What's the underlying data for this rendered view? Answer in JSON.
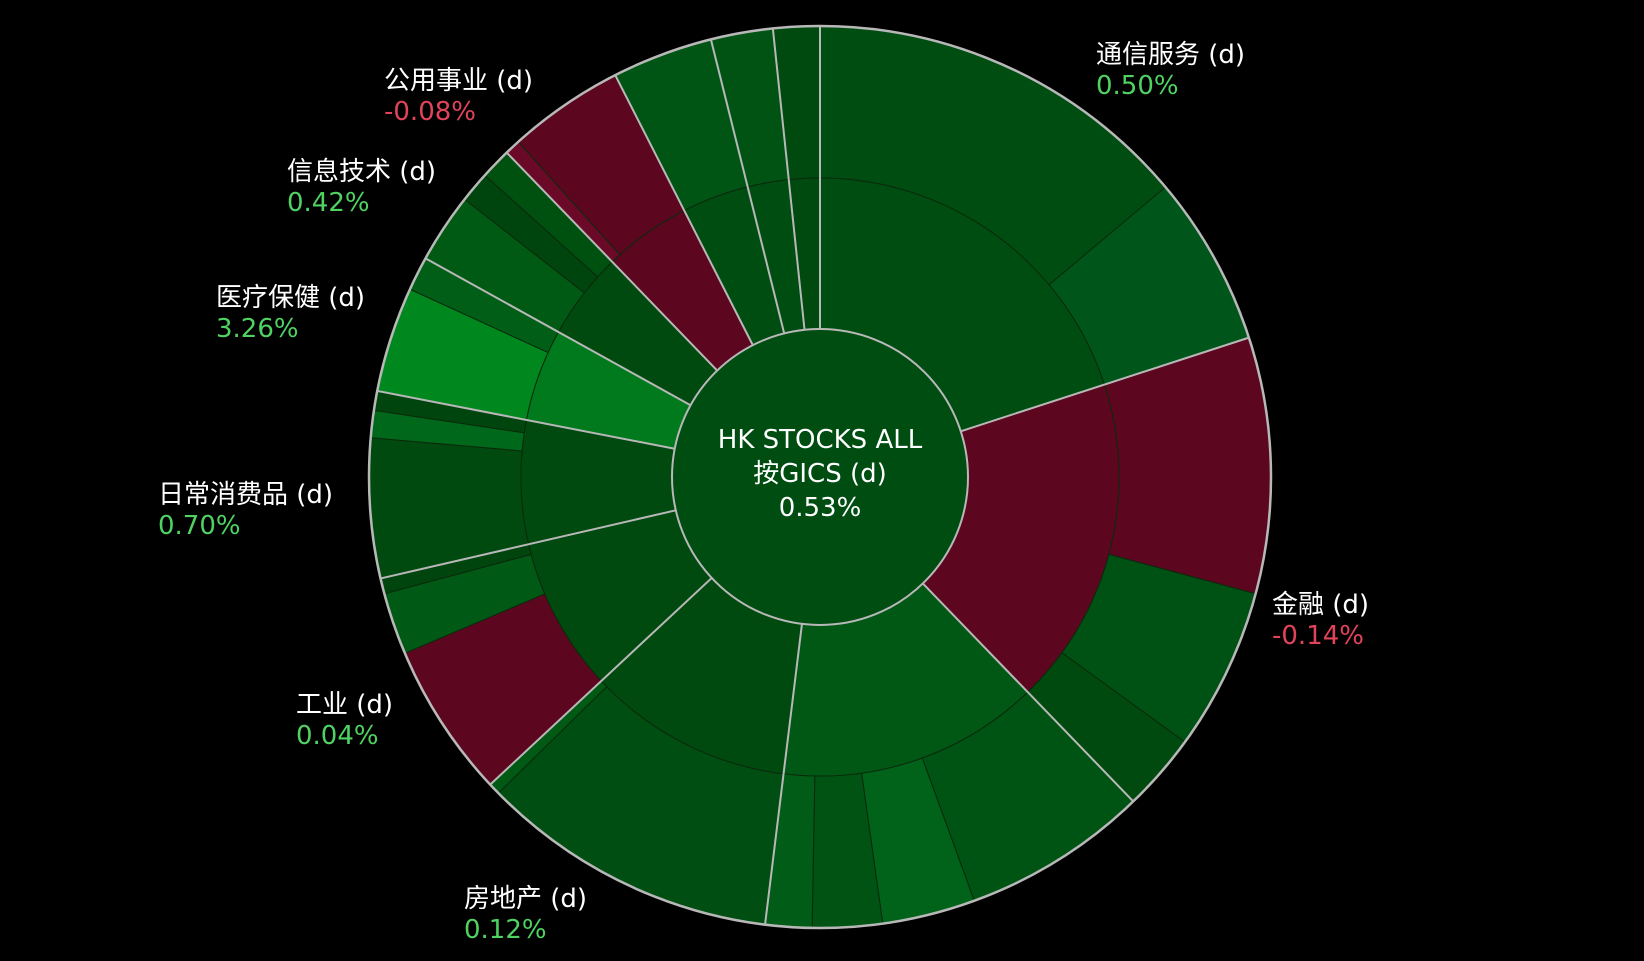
{
  "chart_data": {
    "type": "sunburst",
    "center": {
      "lines": [
        "HK STOCKS ALL",
        "按GICS (d)"
      ],
      "value": 0.53,
      "value_label": "0.53%",
      "color": "#004d12"
    },
    "sectors": [
      {
        "name": "通信服务 (d)",
        "value": 0.5,
        "value_label": "0.50%",
        "color": "#004d12",
        "segments": [
          {
            "size": 50,
            "color": "#004d12"
          },
          {
            "size": 22,
            "color": "#00561a"
          }
        ]
      },
      {
        "name": "金融 (d)",
        "value": -0.14,
        "value_label": "-0.14%",
        "color": "#5c0620",
        "segments": [
          {
            "size": 33,
            "color": "#5c0620"
          },
          {
            "size": 21,
            "color": "#005214"
          },
          {
            "size": 10,
            "color": "#004a10"
          }
        ]
      },
      {
        "name": null,
        "color": "#005814",
        "segments": [
          {
            "size": 24,
            "color": "#005413"
          },
          {
            "size": 12,
            "color": "#006319"
          },
          {
            "size": 9,
            "color": "#005312"
          },
          {
            "size": 6,
            "color": "#005c16"
          }
        ]
      },
      {
        "name": "房地产 (d)",
        "value": 0.12,
        "value_label": "0.12%",
        "color": "#004a10",
        "segments": [
          {
            "size": 38.5,
            "color": "#004e11"
          },
          {
            "size": 1.5,
            "color": "#005a14"
          }
        ]
      },
      {
        "name": "工业 (d)",
        "value": 0.04,
        "value_label": "0.04%",
        "color": "#004a10",
        "segments": [
          {
            "size": 20,
            "color": "#5c0620"
          },
          {
            "size": 8,
            "color": "#005a16"
          },
          {
            "size": 2,
            "color": "#00440e"
          }
        ]
      },
      {
        "name": "日常消费品 (d)",
        "value": 0.7,
        "value_label": "0.70%",
        "color": "#004a10",
        "segments": [
          {
            "size": 18,
            "color": "#004a10"
          },
          {
            "size": 3.5,
            "color": "#00681a"
          },
          {
            "size": 2.5,
            "color": "#00450e"
          }
        ]
      },
      {
        "name": "医疗保健 (d)",
        "value": 3.26,
        "value_label": "3.26%",
        "color": "#007a1c",
        "segments": [
          {
            "size": 13.6,
            "color": "#00881f"
          },
          {
            "size": 4.4,
            "color": "#005e16"
          }
        ]
      },
      {
        "name": "信息技术 (d)",
        "value": 0.42,
        "value_label": "0.42%",
        "color": "#004a10",
        "segments": [
          {
            "size": 9,
            "color": "#005a14"
          },
          {
            "size": 4,
            "color": "#00440e"
          },
          {
            "size": 4,
            "color": "#00500f"
          }
        ]
      },
      {
        "name": "公用事业 (d)",
        "value": -0.08,
        "value_label": "-0.08%",
        "color": "#5c0620",
        "segments": [
          {
            "size": 2,
            "color": "#6a0a28"
          },
          {
            "size": 15,
            "color": "#5c0620"
          }
        ]
      },
      {
        "name": null,
        "color": "#004d12",
        "segments": [
          {
            "size": 13,
            "color": "#005514"
          }
        ]
      },
      {
        "name": null,
        "color": "#004d12",
        "segments": [
          {
            "size": 8,
            "color": "#005312"
          }
        ]
      },
      {
        "name": null,
        "color": "#004a10",
        "segments": [
          {
            "size": 6,
            "color": "#004a10"
          }
        ]
      }
    ],
    "positive_color": "#4fd262",
    "negative_color": "#e0435a"
  }
}
